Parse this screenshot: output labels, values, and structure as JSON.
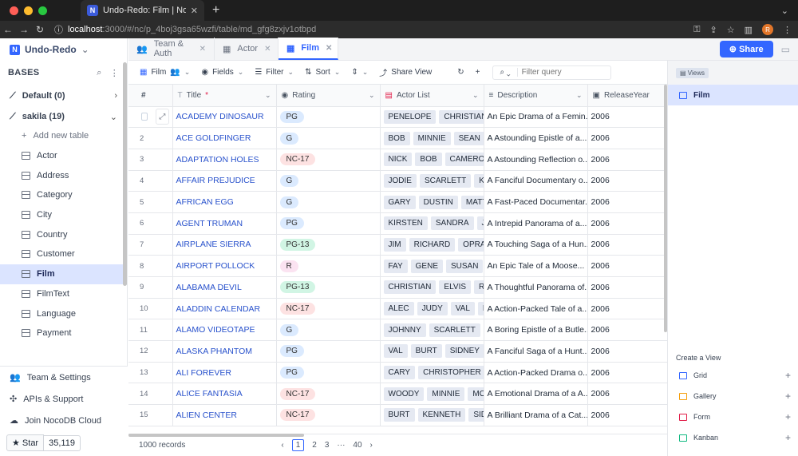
{
  "browser": {
    "tab_title": "Undo-Redo: Film | NocoDB",
    "favicon_letter": "N",
    "url_host": "localhost",
    "url_rest": ":3000/#/nc/p_4boj3gsa65wzfi/table/md_gfg8zxjv1otbpd",
    "avatar_letter": "R"
  },
  "sidebar": {
    "project_name": "Undo-Redo",
    "bases_label": "BASES",
    "bases": [
      {
        "name": "Default (0)"
      },
      {
        "name": "sakila (19)"
      }
    ],
    "add_table_label": "Add new table",
    "tables": [
      {
        "label": "Actor"
      },
      {
        "label": "Address"
      },
      {
        "label": "Category"
      },
      {
        "label": "City"
      },
      {
        "label": "Country"
      },
      {
        "label": "Customer"
      },
      {
        "label": "Film"
      },
      {
        "label": "FilmText"
      },
      {
        "label": "Language"
      },
      {
        "label": "Payment"
      }
    ],
    "bottom": {
      "team_settings": "Team & Settings",
      "apis_support": "APIs & Support",
      "join_cloud": "Join NocoDB Cloud",
      "star_label": "Star",
      "star_count": "35,119"
    }
  },
  "tabs": [
    {
      "label": "Team & Auth"
    },
    {
      "label": "Actor"
    },
    {
      "label": "Film"
    }
  ],
  "share_label": "Share",
  "toolbar": {
    "view_name": "Film",
    "fields": "Fields",
    "filter": "Filter",
    "sort": "Sort",
    "share_view": "Share View",
    "search_placeholder": "Filter query"
  },
  "columns": {
    "title": "Title",
    "title_required": "*",
    "rating": "Rating",
    "actor_list": "Actor List",
    "description": "Description",
    "release_year": "ReleaseYear"
  },
  "rows": [
    {
      "n": "1",
      "title": "ACADEMY DINOSAUR",
      "rating": "PG",
      "rating_color": "#dbeafe",
      "actors": [
        "PENELOPE",
        "CHRISTIAN"
      ],
      "desc": "An Epic Drama of a Femin...",
      "year": "2006"
    },
    {
      "n": "2",
      "title": "ACE GOLDFINGER",
      "rating": "G",
      "rating_color": "#dbeafe",
      "actors": [
        "BOB",
        "MINNIE",
        "SEAN",
        "C"
      ],
      "desc": "A Astounding Epistle of a...",
      "year": "2006"
    },
    {
      "n": "3",
      "title": "ADAPTATION HOLES",
      "rating": "NC-17",
      "rating_color": "#fde2e2",
      "actors": [
        "NICK",
        "BOB",
        "CAMERON"
      ],
      "desc": "A Astounding Reflection o...",
      "year": "2006"
    },
    {
      "n": "4",
      "title": "AFFAIR PREJUDICE",
      "rating": "G",
      "rating_color": "#dbeafe",
      "actors": [
        "JODIE",
        "SCARLETT",
        "KEN"
      ],
      "desc": "A Fanciful Documentary o...",
      "year": "2006"
    },
    {
      "n": "5",
      "title": "AFRICAN EGG",
      "rating": "G",
      "rating_color": "#dbeafe",
      "actors": [
        "GARY",
        "DUSTIN",
        "MATTH"
      ],
      "desc": "A Fast-Paced Documentar...",
      "year": "2006"
    },
    {
      "n": "6",
      "title": "AGENT TRUMAN",
      "rating": "PG",
      "rating_color": "#dbeafe",
      "actors": [
        "KIRSTEN",
        "SANDRA",
        "JAY"
      ],
      "desc": "A Intrepid Panorama of a...",
      "year": "2006"
    },
    {
      "n": "7",
      "title": "AIRPLANE SIERRA",
      "rating": "PG-13",
      "rating_color": "#d1f5e4",
      "actors": [
        "JIM",
        "RICHARD",
        "OPRAH"
      ],
      "desc": "A Touching Saga of a Hun...",
      "year": "2006"
    },
    {
      "n": "8",
      "title": "AIRPORT POLLOCK",
      "rating": "R",
      "rating_color": "#fbe3f1",
      "actors": [
        "FAY",
        "GENE",
        "SUSAN",
        "L"
      ],
      "desc": "An Epic Tale of a Moose...",
      "year": "2006"
    },
    {
      "n": "9",
      "title": "ALABAMA DEVIL",
      "rating": "PG-13",
      "rating_color": "#d1f5e4",
      "actors": [
        "CHRISTIAN",
        "ELVIS",
        "RIP"
      ],
      "desc": "A Thoughtful Panorama of...",
      "year": "2006"
    },
    {
      "n": "10",
      "title": "ALADDIN CALENDAR",
      "rating": "NC-17",
      "rating_color": "#fde2e2",
      "actors": [
        "ALEC",
        "JUDY",
        "VAL",
        "RA"
      ],
      "desc": "A Action-Packed Tale of a...",
      "year": "2006"
    },
    {
      "n": "11",
      "title": "ALAMO VIDEOTAPE",
      "rating": "G",
      "rating_color": "#dbeafe",
      "actors": [
        "JOHNNY",
        "SCARLETT",
        "S"
      ],
      "desc": "A Boring Epistle of a Butle...",
      "year": "2006"
    },
    {
      "n": "12",
      "title": "ALASKA PHANTOM",
      "rating": "PG",
      "rating_color": "#dbeafe",
      "actors": [
        "VAL",
        "BURT",
        "SIDNEY",
        "S"
      ],
      "desc": "A Fanciful Saga of a Hunt...",
      "year": "2006"
    },
    {
      "n": "13",
      "title": "ALI FOREVER",
      "rating": "PG",
      "rating_color": "#dbeafe",
      "actors": [
        "CARY",
        "CHRISTOPHER",
        "I"
      ],
      "desc": "A Action-Packed Drama o...",
      "year": "2006"
    },
    {
      "n": "14",
      "title": "ALICE FANTASIA",
      "rating": "NC-17",
      "rating_color": "#fde2e2",
      "actors": [
        "WOODY",
        "MINNIE",
        "MORG"
      ],
      "desc": "A Emotional Drama of a A...",
      "year": "2006"
    },
    {
      "n": "15",
      "title": "ALIEN CENTER",
      "rating": "NC-17",
      "rating_color": "#fde2e2",
      "actors": [
        "BURT",
        "KENNETH",
        "SIDN"
      ],
      "desc": "A Brilliant Drama of a Cat...",
      "year": "2006"
    }
  ],
  "footer": {
    "records": "1000 records",
    "pages": [
      "1",
      "2",
      "3",
      "40"
    ],
    "ellipsis": "···"
  },
  "views_panel": {
    "header": "Views",
    "active_view": "Film",
    "create_label": "Create a View",
    "types": [
      {
        "label": "Grid",
        "color": "#3366ff"
      },
      {
        "label": "Gallery",
        "color": "#f59e0b"
      },
      {
        "label": "Form",
        "color": "#e11d48"
      },
      {
        "label": "Kanban",
        "color": "#10b981"
      }
    ]
  },
  "colors": {
    "accent": "#3366ff",
    "active_bg": "#dbe4ff",
    "link": "#2952cc"
  }
}
